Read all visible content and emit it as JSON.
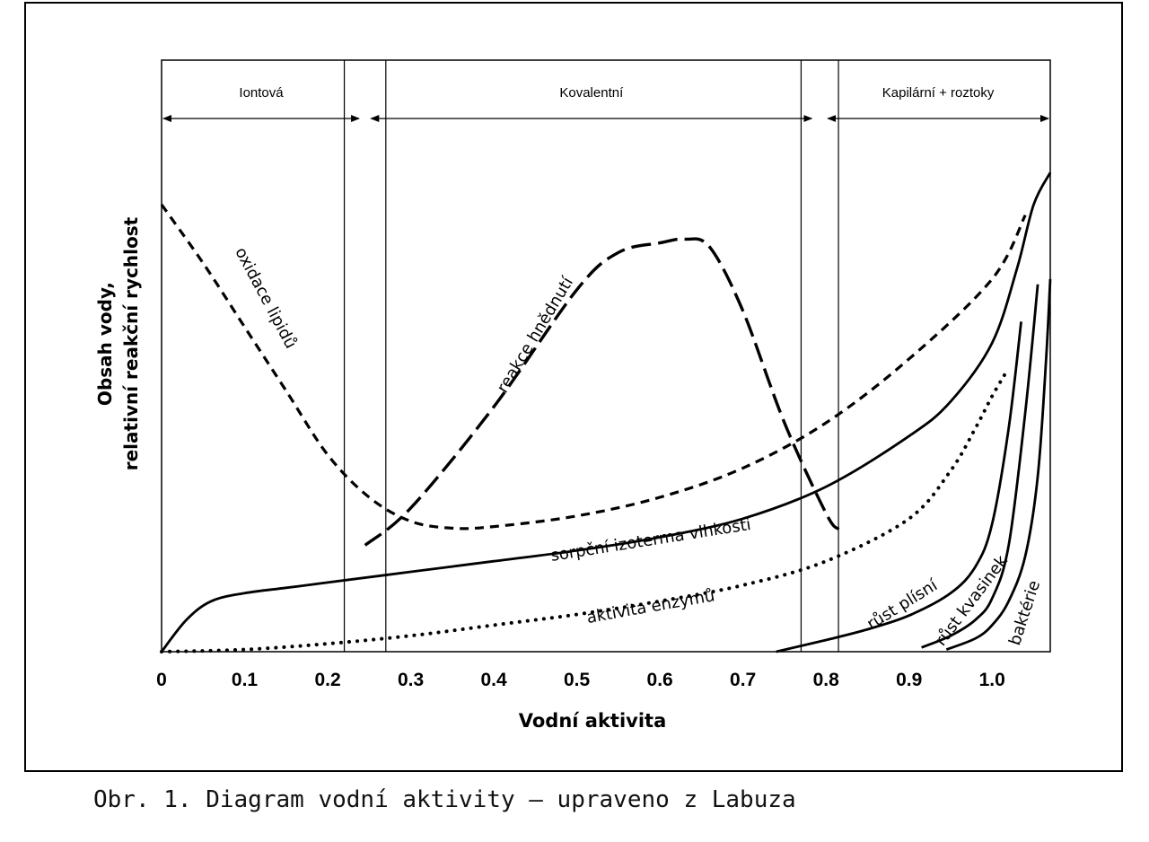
{
  "chart_data": {
    "type": "line",
    "title": "",
    "xlabel": "Vodní aktivita",
    "ylabel_lines": [
      "Obsah vody,",
      "relativní reakční rychlost"
    ],
    "xlim": [
      0,
      1.07
    ],
    "ylim": [
      0,
      1
    ],
    "grid": false,
    "x_ticks": [
      {
        "value": 0,
        "label": "0"
      },
      {
        "value": 0.1,
        "label": "0.1"
      },
      {
        "value": 0.2,
        "label": "0.2"
      },
      {
        "value": 0.3,
        "label": "0.3"
      },
      {
        "value": 0.4,
        "label": "0.4"
      },
      {
        "value": 0.5,
        "label": "0.5"
      },
      {
        "value": 0.6,
        "label": "0.6"
      },
      {
        "value": 0.7,
        "label": "0.7"
      },
      {
        "value": 0.8,
        "label": "0.8"
      },
      {
        "value": 0.9,
        "label": "0.9"
      },
      {
        "value": 1.0,
        "label": "1.0"
      }
    ],
    "zone_boundaries": [
      0.22,
      0.27,
      0.77,
      0.815
    ],
    "zones": [
      {
        "label": "Iontová",
        "from": 0,
        "to": 0.24
      },
      {
        "label": "Kovalentní",
        "from": 0.25,
        "to": 0.785
      },
      {
        "label": "Kapilární + roztoky",
        "from": 0.8,
        "to": 1.07
      }
    ],
    "series": [
      {
        "name": "oxidace lipidů",
        "style": "short-dash",
        "x": [
          0,
          0.05,
          0.1,
          0.15,
          0.2,
          0.25,
          0.3,
          0.35,
          0.4,
          0.5,
          0.6,
          0.7,
          0.8,
          0.9,
          1.0,
          1.04
        ],
        "y": [
          0.84,
          0.73,
          0.61,
          0.49,
          0.37,
          0.29,
          0.245,
          0.232,
          0.235,
          0.255,
          0.29,
          0.345,
          0.43,
          0.55,
          0.7,
          0.82
        ]
      },
      {
        "name": "reakce hnědnutí",
        "style": "long-dash",
        "x": [
          0.245,
          0.3,
          0.4,
          0.5,
          0.55,
          0.6,
          0.63,
          0.66,
          0.7,
          0.75,
          0.8,
          0.815
        ],
        "y": [
          0.2,
          0.27,
          0.46,
          0.68,
          0.75,
          0.768,
          0.775,
          0.76,
          0.64,
          0.43,
          0.26,
          0.23
        ]
      },
      {
        "name": "sorpční izoterma vlhkosti",
        "style": "solid",
        "x": [
          0,
          0.03,
          0.06,
          0.1,
          0.15,
          0.2,
          0.3,
          0.4,
          0.5,
          0.6,
          0.7,
          0.8,
          0.9,
          0.95,
          1.0,
          1.03,
          1.05,
          1.07
        ],
        "y": [
          0,
          0.06,
          0.095,
          0.11,
          0.12,
          0.13,
          0.15,
          0.17,
          0.19,
          0.215,
          0.25,
          0.31,
          0.405,
          0.47,
          0.58,
          0.72,
          0.84,
          0.9
        ]
      },
      {
        "name": "aktivita enzymů",
        "style": "dotted",
        "x": [
          0,
          0.1,
          0.2,
          0.3,
          0.4,
          0.5,
          0.6,
          0.7,
          0.8,
          0.9,
          0.95,
          0.98,
          1.0,
          1.015
        ],
        "y": [
          0,
          0.004,
          0.015,
          0.03,
          0.05,
          0.07,
          0.095,
          0.125,
          0.17,
          0.25,
          0.34,
          0.42,
          0.48,
          0.52
        ]
      },
      {
        "name": "růst plísní",
        "style": "solid",
        "x": [
          0.74,
          0.8,
          0.85,
          0.9,
          0.95,
          0.98,
          1.0,
          1.02,
          1.035
        ],
        "y": [
          0,
          0.022,
          0.042,
          0.068,
          0.11,
          0.16,
          0.24,
          0.42,
          0.62
        ]
      },
      {
        "name": "růst kvasinek",
        "style": "solid",
        "x": [
          0.915,
          0.95,
          0.98,
          1.0,
          1.02,
          1.04,
          1.055
        ],
        "y": [
          0.008,
          0.03,
          0.06,
          0.1,
          0.2,
          0.45,
          0.69
        ]
      },
      {
        "name": "baktérie",
        "style": "solid",
        "x": [
          0.945,
          0.98,
          1.0,
          1.02,
          1.04,
          1.055,
          1.065,
          1.07
        ],
        "y": [
          0.004,
          0.025,
          0.05,
          0.095,
          0.18,
          0.33,
          0.55,
          0.7
        ]
      }
    ],
    "annotations": [
      {
        "text": "oxidace lipidů",
        "x": 0.12,
        "y": 0.66,
        "angle": 62
      },
      {
        "text": "reakce hnědnutí",
        "x": 0.455,
        "y": 0.59,
        "angle": -59
      },
      {
        "text": "sorpční izoterma vlhkosti",
        "x": 0.59,
        "y": 0.2,
        "angle": -9
      },
      {
        "text": "aktivita enzymů",
        "x": 0.59,
        "y": 0.075,
        "angle": -10
      },
      {
        "text": "růst plísní",
        "x": 0.895,
        "y": 0.08,
        "angle": -32
      },
      {
        "text": "růst kvasinek",
        "x": 0.98,
        "y": 0.09,
        "angle": -53
      },
      {
        "text": "baktérie",
        "x": 1.045,
        "y": 0.07,
        "angle": -72
      }
    ]
  },
  "caption": "Obr. 1. Diagram vodní aktivity – upraveno z Labuza"
}
